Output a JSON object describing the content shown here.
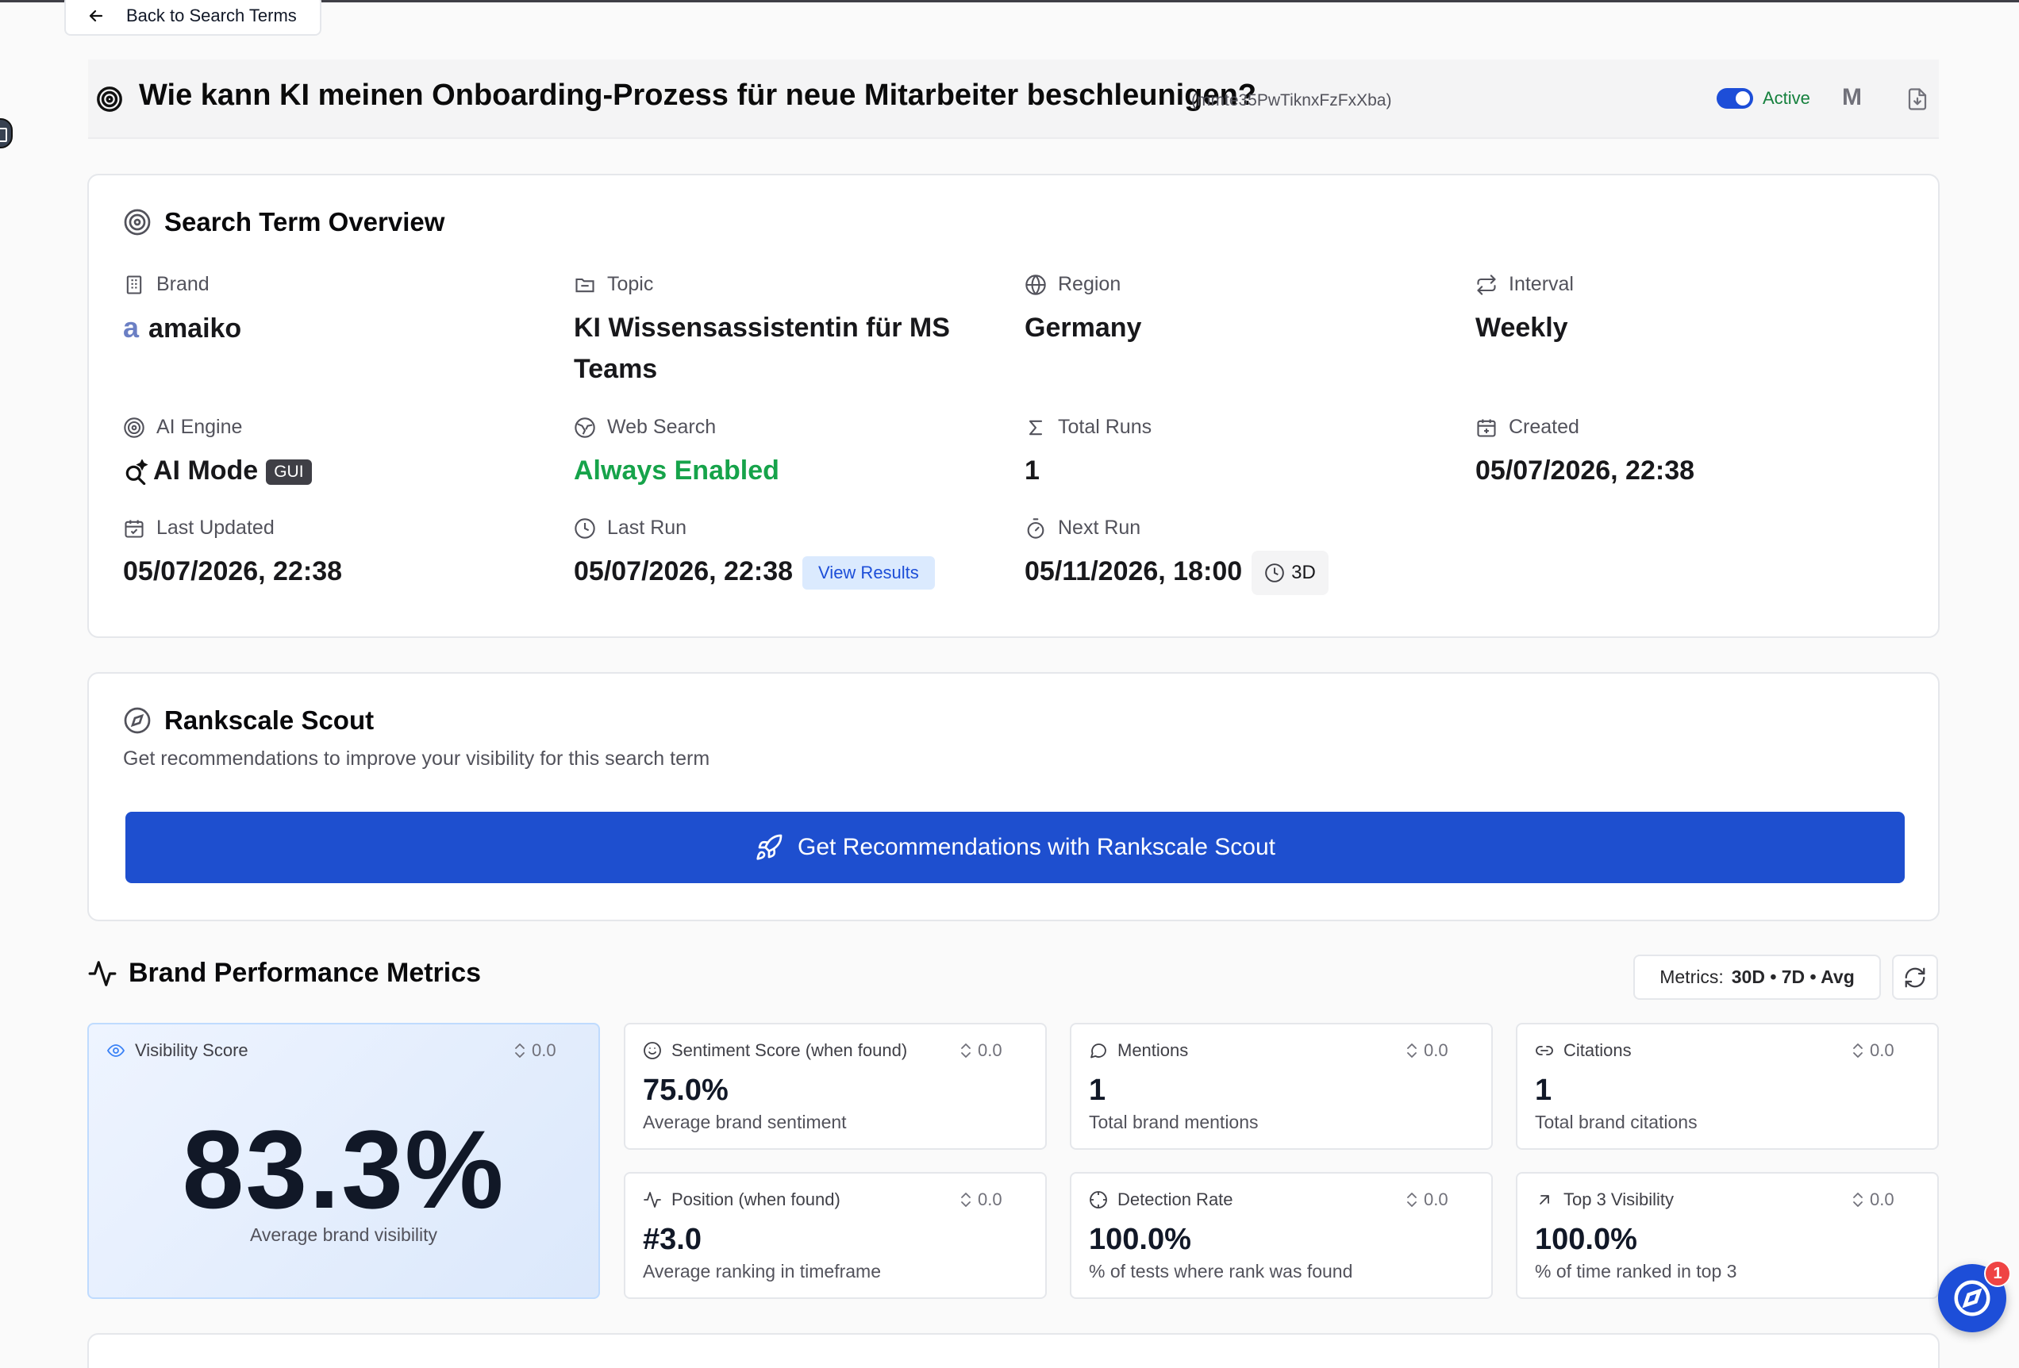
{
  "nav": {
    "back_label": "Back to Search Terms"
  },
  "header": {
    "title": "Wie kann KI meinen Onboarding-Prozess für neue Mitarbeiter beschleunigen?",
    "id": "(mmte35PwTiknxFzFxXba)",
    "status": "Active",
    "avatar_initial": "M",
    "toggle_on": true
  },
  "overview": {
    "title": "Search Term Overview",
    "fields": {
      "brand": {
        "label": "Brand",
        "logo_letter": "a",
        "value": "amaiko"
      },
      "topic": {
        "label": "Topic",
        "value_line1": "KI Wissensassistentin für MS",
        "value_line2": "Teams"
      },
      "region": {
        "label": "Region",
        "value": "Germany"
      },
      "interval": {
        "label": "Interval",
        "value": "Weekly"
      },
      "ai_engine": {
        "label": "AI Engine",
        "value": "AI Mode",
        "badge": "GUI"
      },
      "web_search": {
        "label": "Web Search",
        "value": "Always Enabled"
      },
      "total_runs": {
        "label": "Total Runs",
        "value": "1"
      },
      "created": {
        "label": "Created",
        "value": "05/07/2026, 22:38"
      },
      "last_updated": {
        "label": "Last Updated",
        "value": "05/07/2026, 22:38"
      },
      "last_run": {
        "label": "Last Run",
        "value": "05/07/2026, 22:38",
        "action": "View Results"
      },
      "next_run": {
        "label": "Next Run",
        "value": "05/11/2026, 18:00",
        "badge": "3D"
      }
    }
  },
  "scout": {
    "title": "Rankscale Scout",
    "subtitle": "Get recommendations to improve your visibility for this search term",
    "button_label": "Get Recommendations with Rankscale Scout"
  },
  "metrics": {
    "title": "Brand Performance Metrics",
    "filter_prefix": "Metrics:",
    "filter_value": "30D • 7D • Avg",
    "visibility": {
      "label": "Visibility Score",
      "delta": "0.0",
      "value": "83.3%",
      "sub": "Average brand visibility"
    },
    "cards": [
      {
        "label": "Sentiment Score (when found)",
        "delta": "0.0",
        "value": "75.0%",
        "sub": "Average brand sentiment",
        "icon": "smile-icon"
      },
      {
        "label": "Mentions",
        "delta": "0.0",
        "value": "1",
        "sub": "Total brand mentions",
        "icon": "message-icon"
      },
      {
        "label": "Citations",
        "delta": "0.0",
        "value": "1",
        "sub": "Total brand citations",
        "icon": "link-icon"
      },
      {
        "label": "Position (when found)",
        "delta": "0.0",
        "value": "#3.0",
        "sub": "Average ranking in timeframe",
        "icon": "activity-icon"
      },
      {
        "label": "Detection Rate",
        "delta": "0.0",
        "value": "100.0%",
        "sub": "% of tests where rank was found",
        "icon": "crosshair-icon"
      },
      {
        "label": "Top 3 Visibility",
        "delta": "0.0",
        "value": "100.0%",
        "sub": "% of time ranked in top 3",
        "icon": "arrow-up-right-icon"
      }
    ]
  },
  "assistant": {
    "notification_count": "1"
  },
  "colors": {
    "accent": "#1e4fcf",
    "active_green": "#15803d",
    "web_search_green": "#16a34a"
  }
}
